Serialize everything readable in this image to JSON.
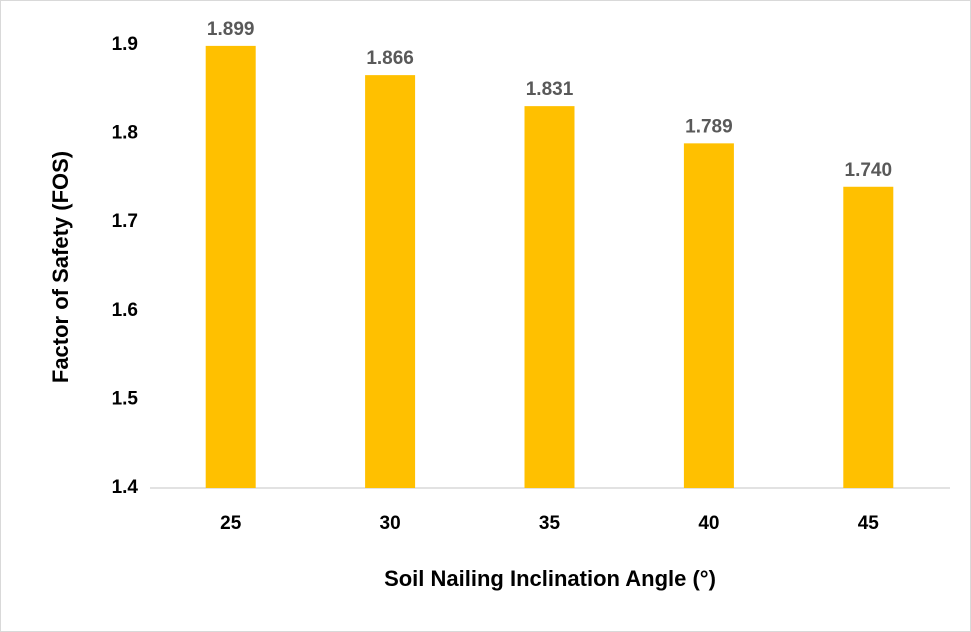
{
  "chart_data": {
    "type": "bar",
    "x_label": "Soil Nailing Inclination Angle (°)",
    "y_label": "Factor of Safety (FOS)",
    "categories": [
      "25",
      "30",
      "35",
      "40",
      "45"
    ],
    "values": [
      1.899,
      1.866,
      1.831,
      1.789,
      1.74
    ],
    "value_labels": [
      "1.899",
      "1.866",
      "1.831",
      "1.789",
      "1.740"
    ],
    "color": "#ffc000",
    "ylim": [
      1.4,
      1.9
    ],
    "yticks": [
      1.4,
      1.5,
      1.6,
      1.7,
      1.8,
      1.9
    ],
    "grid": false
  }
}
